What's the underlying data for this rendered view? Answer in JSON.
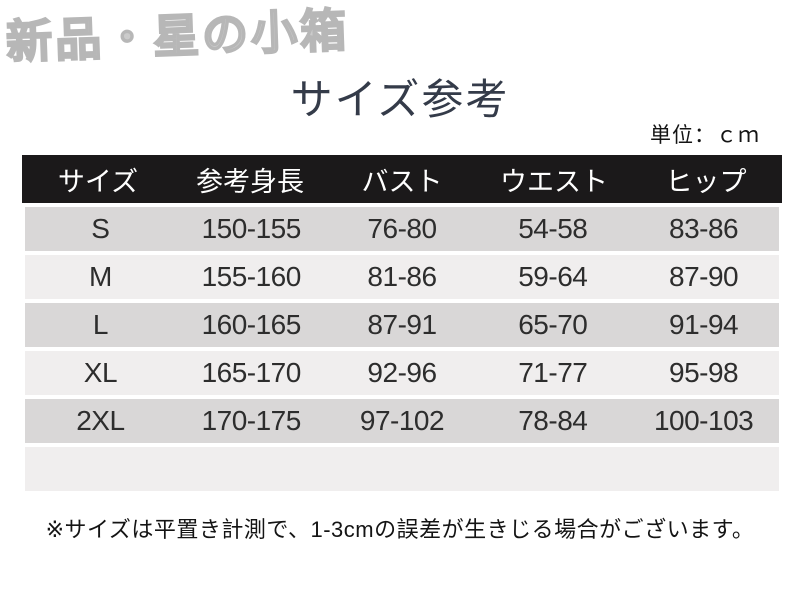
{
  "watermark": "新品・星の小箱",
  "title": "サイズ参考",
  "unit_label": "単位：ｃｍ",
  "table": {
    "headers": [
      "サイズ",
      "参考身長",
      "バスト",
      "ウエスト",
      "ヒップ"
    ],
    "rows": [
      [
        "S",
        "150-155",
        "76-80",
        "54-58",
        "83-86"
      ],
      [
        "M",
        "155-160",
        "81-86",
        "59-64",
        "87-90"
      ],
      [
        "L",
        "160-165",
        "87-91",
        "65-70",
        "91-94"
      ],
      [
        "XL",
        "165-170",
        "92-96",
        "71-77",
        "95-98"
      ],
      [
        "2XL",
        "170-175",
        "97-102",
        "78-84",
        "100-103"
      ]
    ]
  },
  "note": "※サイズは平置き計測で、1-3cmの誤差が生きじる場合がございます。",
  "colors": {
    "header_bg": "#1b191a",
    "header_text": "#ffffff",
    "row_gray": "#d9d7d7",
    "row_light": "#f0eeee",
    "title_text": "#343b49",
    "watermark_gray": "#cbcbcb",
    "body_text": "#2d2d2d"
  }
}
